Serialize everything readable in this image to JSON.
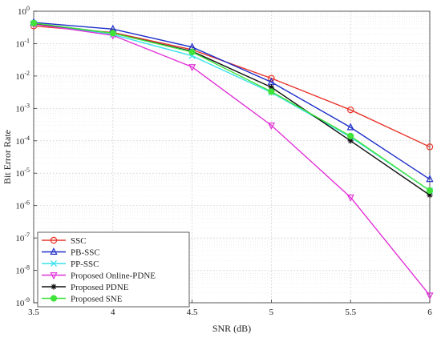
{
  "chart_data": {
    "type": "line",
    "xlabel": "SNR (dB)",
    "ylabel": "Bit Error Rate",
    "x": [
      3.5,
      4,
      4.5,
      5,
      5.5,
      6
    ],
    "x_ticks": [
      "3.5",
      "4",
      "4.5",
      "5",
      "5.5",
      "6"
    ],
    "xlim": [
      3.5,
      6
    ],
    "ylim": [
      1e-09,
      1
    ],
    "yscale": "log",
    "y_ticks": [
      {
        "base": "10",
        "exp": "0",
        "value": 1
      },
      {
        "base": "10",
        "exp": "-1",
        "value": 0.1
      },
      {
        "base": "10",
        "exp": "-2",
        "value": 0.01
      },
      {
        "base": "10",
        "exp": "-3",
        "value": 0.001
      },
      {
        "base": "10",
        "exp": "-4",
        "value": 0.0001
      },
      {
        "base": "10",
        "exp": "-5",
        "value": 1e-05
      },
      {
        "base": "10",
        "exp": "-6",
        "value": 1e-06
      },
      {
        "base": "10",
        "exp": "-7",
        "value": 1e-07
      },
      {
        "base": "10",
        "exp": "-8",
        "value": 1e-08
      },
      {
        "base": "10",
        "exp": "-9",
        "value": 1e-09
      }
    ],
    "grid": true,
    "legend_position": "bottom-left",
    "series": [
      {
        "name": "SSC",
        "color": "#e8362b",
        "marker": "circle",
        "values": [
          0.35,
          0.22,
          0.065,
          0.0085,
          0.0009,
          6.5e-05
        ]
      },
      {
        "name": "PB-SSC",
        "color": "#1d2ec9",
        "marker": "triangle-up",
        "values": [
          0.45,
          0.28,
          0.078,
          0.0065,
          0.00026,
          6.5e-06
        ]
      },
      {
        "name": "PP-SSC",
        "color": "#39e1ee",
        "marker": "x",
        "values": [
          0.42,
          0.19,
          0.042,
          0.0031,
          0.00013,
          2.9e-06
        ]
      },
      {
        "name": "Proposed Online-PDNE",
        "color": "#e232d8",
        "marker": "triangle-down",
        "values": [
          0.4,
          0.18,
          0.019,
          0.0003,
          1.8e-06,
          1.7e-09
        ]
      },
      {
        "name": "Proposed PDNE",
        "color": "#111111",
        "marker": "asterisk",
        "values": [
          0.42,
          0.21,
          0.058,
          0.0045,
          0.0001,
          2.1e-06
        ]
      },
      {
        "name": "Proposed SNE",
        "color": "#3fe33a",
        "marker": "circle-filled",
        "values": [
          0.43,
          0.21,
          0.055,
          0.0033,
          0.00014,
          2.9e-06
        ]
      }
    ]
  }
}
